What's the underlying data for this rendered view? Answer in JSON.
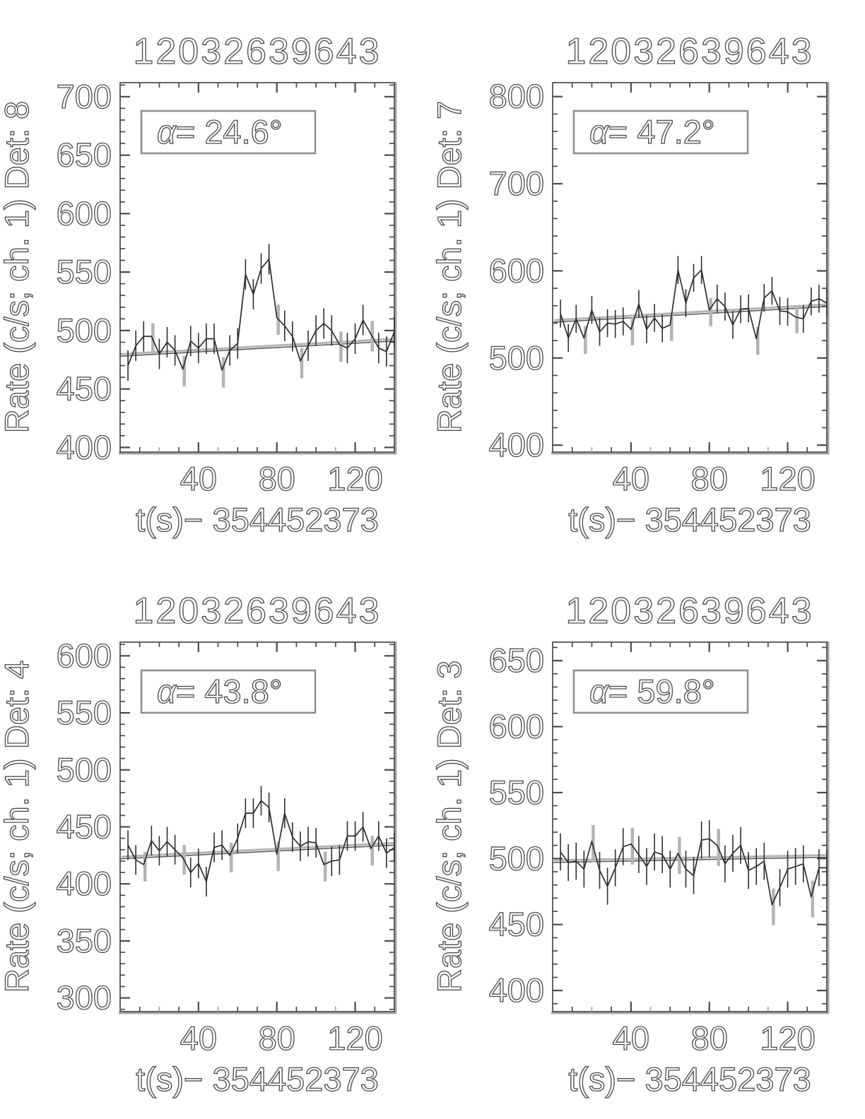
{
  "style": {
    "line": "#2e2e2e",
    "trend": "#555555",
    "gray_line": "#b4b4b4",
    "axis": "#4a4a4a",
    "gray_axis": "#a8a8a8",
    "text_stroke": "#4f4f4f",
    "background": "#ffffff"
  },
  "chart_data": [
    {
      "type": "line",
      "det": 8,
      "title": "12032639643",
      "xlabel": "t(s)− 354452373",
      "ylabel": "Rate (c/s; ch. 1) Det: 8",
      "alpha_symbol": "α",
      "alpha_text": "=  24.6°",
      "alpha_deg": 24.6,
      "xlim": [
        0,
        140
      ],
      "xticks": [
        40,
        80,
        120
      ],
      "xtick_minor_step": 10,
      "ylim": [
        396,
        712
      ],
      "yticks": [
        400,
        450,
        500,
        550,
        600,
        650,
        700
      ],
      "ytick_minor_step": 10,
      "x_start": 4,
      "x_step": 4,
      "values": [
        470,
        487,
        495,
        495,
        480,
        490,
        483,
        467,
        491,
        485,
        493,
        493,
        466,
        483,
        489,
        548,
        531,
        553,
        561,
        511,
        504,
        495,
        474,
        487,
        500,
        506,
        500,
        488,
        485,
        493,
        509,
        497,
        485,
        482,
        499
      ],
      "error": 13,
      "gray_error_indices": [
        3,
        7,
        12,
        19,
        22,
        27,
        31
      ],
      "trend": [
        478,
        491
      ],
      "legend": "none",
      "grid": "off"
    },
    {
      "type": "line",
      "det": 7,
      "title": "12032639643",
      "xlabel": "t(s)− 354452373",
      "ylabel": "Rate (c/s; ch. 1) Det: 7",
      "alpha_symbol": "α",
      "alpha_text": "=  47.2°",
      "alpha_deg": 47.2,
      "xlim": [
        0,
        140
      ],
      "xticks": [
        40,
        80,
        120
      ],
      "xtick_minor_step": 10,
      "ylim": [
        392,
        816
      ],
      "yticks": [
        400,
        500,
        600,
        700,
        800
      ],
      "ytick_minor_step": 20,
      "x_start": 4,
      "x_step": 4,
      "values": [
        551,
        523,
        545,
        523,
        555,
        530,
        540,
        539,
        542,
        533,
        562,
        533,
        546,
        534,
        538,
        601,
        563,
        592,
        601,
        555,
        568,
        559,
        538,
        556,
        557,
        522,
        569,
        577,
        554,
        553,
        547,
        545,
        565,
        568,
        563
      ],
      "error": 16,
      "gray_error_indices": [
        3,
        9,
        14,
        19,
        25,
        30
      ],
      "trend": [
        541,
        559
      ],
      "legend": "none",
      "grid": "off"
    },
    {
      "type": "line",
      "det": 4,
      "title": "12032639643",
      "xlabel": "t(s)− 354452373",
      "ylabel": "Rate (c/s; ch. 1) Det: 4",
      "alpha_symbol": "α",
      "alpha_text": "=  43.8°",
      "alpha_deg": 43.8,
      "xlim": [
        0,
        140
      ],
      "xticks": [
        40,
        80,
        120
      ],
      "xtick_minor_step": 10,
      "ylim": [
        288,
        612
      ],
      "yticks": [
        300,
        350,
        400,
        450,
        500,
        550,
        600
      ],
      "ytick_minor_step": 10,
      "x_start": 4,
      "x_step": 4,
      "values": [
        434,
        421,
        417,
        438,
        429,
        437,
        430,
        423,
        410,
        418,
        402,
        432,
        434,
        425,
        440,
        462,
        462,
        473,
        467,
        426,
        462,
        441,
        433,
        437,
        436,
        417,
        420,
        421,
        442,
        442,
        450,
        431,
        442,
        427,
        432
      ],
      "error": 13,
      "gray_error_indices": [
        2,
        7,
        13,
        19,
        25,
        31
      ],
      "trend": [
        422,
        434
      ],
      "legend": "none",
      "grid": "off"
    },
    {
      "type": "line",
      "det": 3,
      "title": "12032639643",
      "xlabel": "t(s)− 354452373",
      "ylabel": "Rate (c/s; ch. 1) Det: 3",
      "alpha_symbol": "α",
      "alpha_text": "=  59.8°",
      "alpha_deg": 59.8,
      "xlim": [
        0,
        140
      ],
      "xticks": [
        40,
        80,
        120
      ],
      "xtick_minor_step": 10,
      "ylim": [
        384,
        664
      ],
      "yticks": [
        400,
        450,
        500,
        550,
        600,
        650
      ],
      "ytick_minor_step": 10,
      "x_start": 4,
      "x_step": 4,
      "values": [
        505,
        497,
        498,
        492,
        513,
        491,
        479,
        493,
        509,
        511,
        503,
        494,
        505,
        503,
        492,
        504,
        492,
        487,
        514,
        515,
        510,
        496,
        504,
        510,
        491,
        494,
        498,
        465,
        478,
        492,
        494,
        496,
        471,
        493,
        493
      ],
      "error": 14,
      "gray_error_indices": [
        4,
        9,
        15,
        20,
        27,
        32
      ],
      "trend": [
        497,
        501
      ],
      "legend": "none",
      "grid": "off"
    }
  ]
}
